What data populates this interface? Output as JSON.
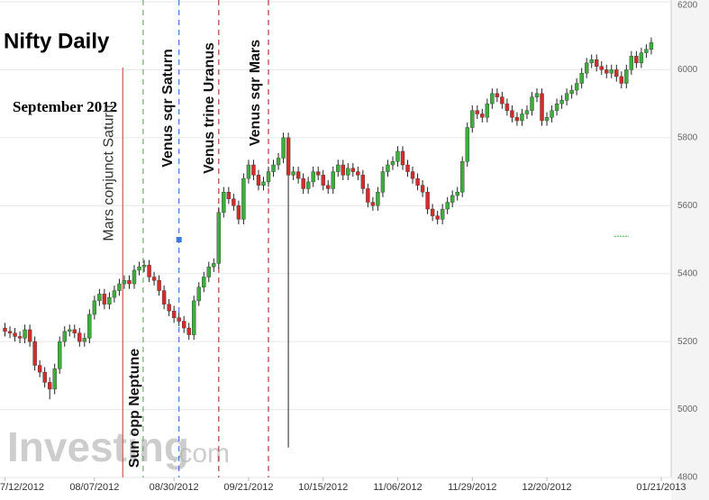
{
  "chart_data": {
    "type": "candlestick",
    "title": "Nifty Daily",
    "subtitle": "September 2012",
    "watermark": [
      "Investing",
      ".com"
    ],
    "up_color": "#3dae3d",
    "down_color": "#d42b2b",
    "grid": true,
    "ylim": [
      4800,
      6200
    ],
    "yticks": [
      4800,
      5000,
      5200,
      5400,
      5600,
      5800,
      6000,
      6200
    ],
    "xlim": [
      -1,
      134
    ],
    "xticks": [
      {
        "value": 0,
        "label": "7/12/2012"
      },
      {
        "value": 18,
        "label": "08/07/2012"
      },
      {
        "value": 34,
        "label": "08/30/2012"
      },
      {
        "value": 49,
        "label": "09/21/2012"
      },
      {
        "value": 64,
        "label": "10/15/2012"
      },
      {
        "value": 79,
        "label": "11/06/2012"
      },
      {
        "value": 94,
        "label": "11/29/2012"
      },
      {
        "value": 109,
        "label": "12/20/2012"
      },
      {
        "value": 132,
        "label": "01/21/2013"
      }
    ],
    "open": [
      5240,
      5230,
      5225,
      5215,
      5210,
      5235,
      5200,
      5130,
      5110,
      5080,
      5060,
      5120,
      5200,
      5230,
      5235,
      5225,
      5200,
      5210,
      5280,
      5320,
      5340,
      5310,
      5330,
      5350,
      5370,
      5380,
      5370,
      5410,
      5420,
      5425,
      5390,
      5380,
      5350,
      5310,
      5290,
      5270,
      5260,
      5240,
      5220,
      5320,
      5360,
      5390,
      5420,
      5430,
      5580,
      5640,
      5620,
      5600,
      5560,
      5680,
      5720,
      5690,
      5660,
      5670,
      5700,
      5720,
      5740,
      5800,
      5690,
      5700,
      5680,
      5650,
      5670,
      5700,
      5690,
      5660,
      5650,
      5700,
      5720,
      5690,
      5710,
      5700,
      5690,
      5650,
      5610,
      5600,
      5640,
      5700,
      5720,
      5730,
      5760,
      5720,
      5700,
      5680,
      5660,
      5640,
      5590,
      5570,
      5560,
      5590,
      5610,
      5630,
      5640,
      5730,
      5830,
      5880,
      5870,
      5860,
      5900,
      5930,
      5920,
      5900,
      5880,
      5860,
      5850,
      5870,
      5880,
      5920,
      5930,
      5850,
      5860,
      5880,
      5900,
      5910,
      5930,
      5940,
      5960,
      5990,
      6020,
      6030,
      6010,
      6000,
      5990,
      6000,
      5980,
      5960,
      6000,
      6040,
      6020,
      6050,
      6060
    ],
    "high": [
      5255,
      5245,
      5240,
      5230,
      5250,
      5250,
      5215,
      5145,
      5125,
      5095,
      5135,
      5215,
      5245,
      5250,
      5250,
      5240,
      5225,
      5295,
      5335,
      5355,
      5355,
      5345,
      5365,
      5385,
      5395,
      5395,
      5425,
      5435,
      5440,
      5440,
      5405,
      5395,
      5365,
      5325,
      5305,
      5285,
      5275,
      5255,
      5335,
      5375,
      5405,
      5435,
      5445,
      5595,
      5655,
      5655,
      5635,
      5615,
      5695,
      5735,
      5735,
      5705,
      5685,
      5715,
      5735,
      5755,
      5815,
      5815,
      5715,
      5715,
      5695,
      5685,
      5715,
      5715,
      5705,
      5675,
      5715,
      5735,
      5735,
      5725,
      5725,
      5715,
      5705,
      5665,
      5625,
      5655,
      5715,
      5735,
      5745,
      5775,
      5775,
      5735,
      5715,
      5695,
      5675,
      5655,
      5605,
      5585,
      5605,
      5625,
      5645,
      5655,
      5745,
      5845,
      5895,
      5895,
      5885,
      5915,
      5945,
      5945,
      5935,
      5915,
      5895,
      5875,
      5885,
      5895,
      5935,
      5945,
      5945,
      5875,
      5895,
      5915,
      5925,
      5945,
      5955,
      5975,
      6005,
      6035,
      6045,
      6045,
      6025,
      6015,
      6015,
      6015,
      5995,
      6015,
      6055,
      6055,
      6065,
      6075,
      6095
    ],
    "low": [
      5215,
      5210,
      5200,
      5195,
      5195,
      5185,
      5115,
      5095,
      5065,
      5030,
      5045,
      5105,
      5185,
      5215,
      5210,
      5185,
      5185,
      5195,
      5265,
      5305,
      5295,
      5295,
      5315,
      5335,
      5355,
      5355,
      5355,
      5395,
      5405,
      5375,
      5365,
      5335,
      5295,
      5275,
      5255,
      5245,
      5225,
      5205,
      5205,
      5305,
      5345,
      5375,
      5405,
      5415,
      5565,
      5605,
      5585,
      5545,
      5545,
      5665,
      5675,
      5645,
      5645,
      5655,
      5685,
      5705,
      5725,
      4888,
      5675,
      5665,
      5635,
      5635,
      5655,
      5675,
      5645,
      5635,
      5635,
      5685,
      5675,
      5675,
      5685,
      5675,
      5635,
      5595,
      5585,
      5585,
      5625,
      5685,
      5705,
      5715,
      5705,
      5685,
      5665,
      5645,
      5625,
      5575,
      5555,
      5545,
      5545,
      5575,
      5595,
      5615,
      5625,
      5715,
      5815,
      5855,
      5845,
      5845,
      5885,
      5905,
      5885,
      5865,
      5845,
      5835,
      5835,
      5855,
      5865,
      5905,
      5835,
      5835,
      5845,
      5865,
      5885,
      5895,
      5915,
      5925,
      5945,
      5975,
      6005,
      5995,
      5985,
      5975,
      5975,
      5965,
      5945,
      5945,
      5985,
      6005,
      6005,
      6035,
      6045
    ],
    "close": [
      5230,
      5225,
      5215,
      5210,
      5235,
      5200,
      5130,
      5110,
      5080,
      5060,
      5120,
      5200,
      5230,
      5235,
      5225,
      5200,
      5210,
      5280,
      5320,
      5340,
      5310,
      5330,
      5350,
      5370,
      5380,
      5370,
      5410,
      5420,
      5425,
      5390,
      5380,
      5350,
      5310,
      5290,
      5270,
      5260,
      5240,
      5220,
      5320,
      5360,
      5390,
      5420,
      5430,
      5580,
      5640,
      5620,
      5600,
      5560,
      5680,
      5720,
      5690,
      5660,
      5670,
      5700,
      5720,
      5740,
      5800,
      5690,
      5700,
      5680,
      5650,
      5670,
      5700,
      5690,
      5660,
      5650,
      5700,
      5720,
      5690,
      5710,
      5700,
      5690,
      5650,
      5610,
      5600,
      5640,
      5700,
      5720,
      5730,
      5760,
      5720,
      5700,
      5680,
      5660,
      5640,
      5590,
      5570,
      5560,
      5590,
      5610,
      5630,
      5640,
      5730,
      5830,
      5880,
      5870,
      5860,
      5900,
      5930,
      5920,
      5900,
      5880,
      5860,
      5850,
      5870,
      5880,
      5920,
      5930,
      5850,
      5860,
      5880,
      5900,
      5910,
      5930,
      5940,
      5960,
      5990,
      6020,
      6030,
      6010,
      6000,
      5990,
      6000,
      5980,
      5960,
      6000,
      6040,
      6020,
      6050,
      6060,
      6080
    ],
    "events": [
      {
        "label": "Mars conjunct Saturn",
        "x": 23.7,
        "color": "#d9534f",
        "dash": false
      },
      {
        "label": "Sun opp Neptune",
        "x": 27.8,
        "color": "#5cb85c",
        "dash": true
      },
      {
        "label": "Venus sqr Saturn",
        "x": 35,
        "color": "#3c78d8",
        "dash": true
      },
      {
        "label": "Venus trine Uranus",
        "x": 43,
        "color": "#b03a3a",
        "dash": true
      },
      {
        "label": "Venus sqr Mars",
        "x": 53,
        "color": "#b03a3a",
        "dash": true
      }
    ],
    "markers": [
      {
        "x": 35,
        "value": 5500,
        "color": "#3c78d8",
        "shape": "square"
      },
      {
        "x": 124,
        "value": 5510,
        "color": "#3dae3d",
        "shape": "dash"
      }
    ]
  }
}
